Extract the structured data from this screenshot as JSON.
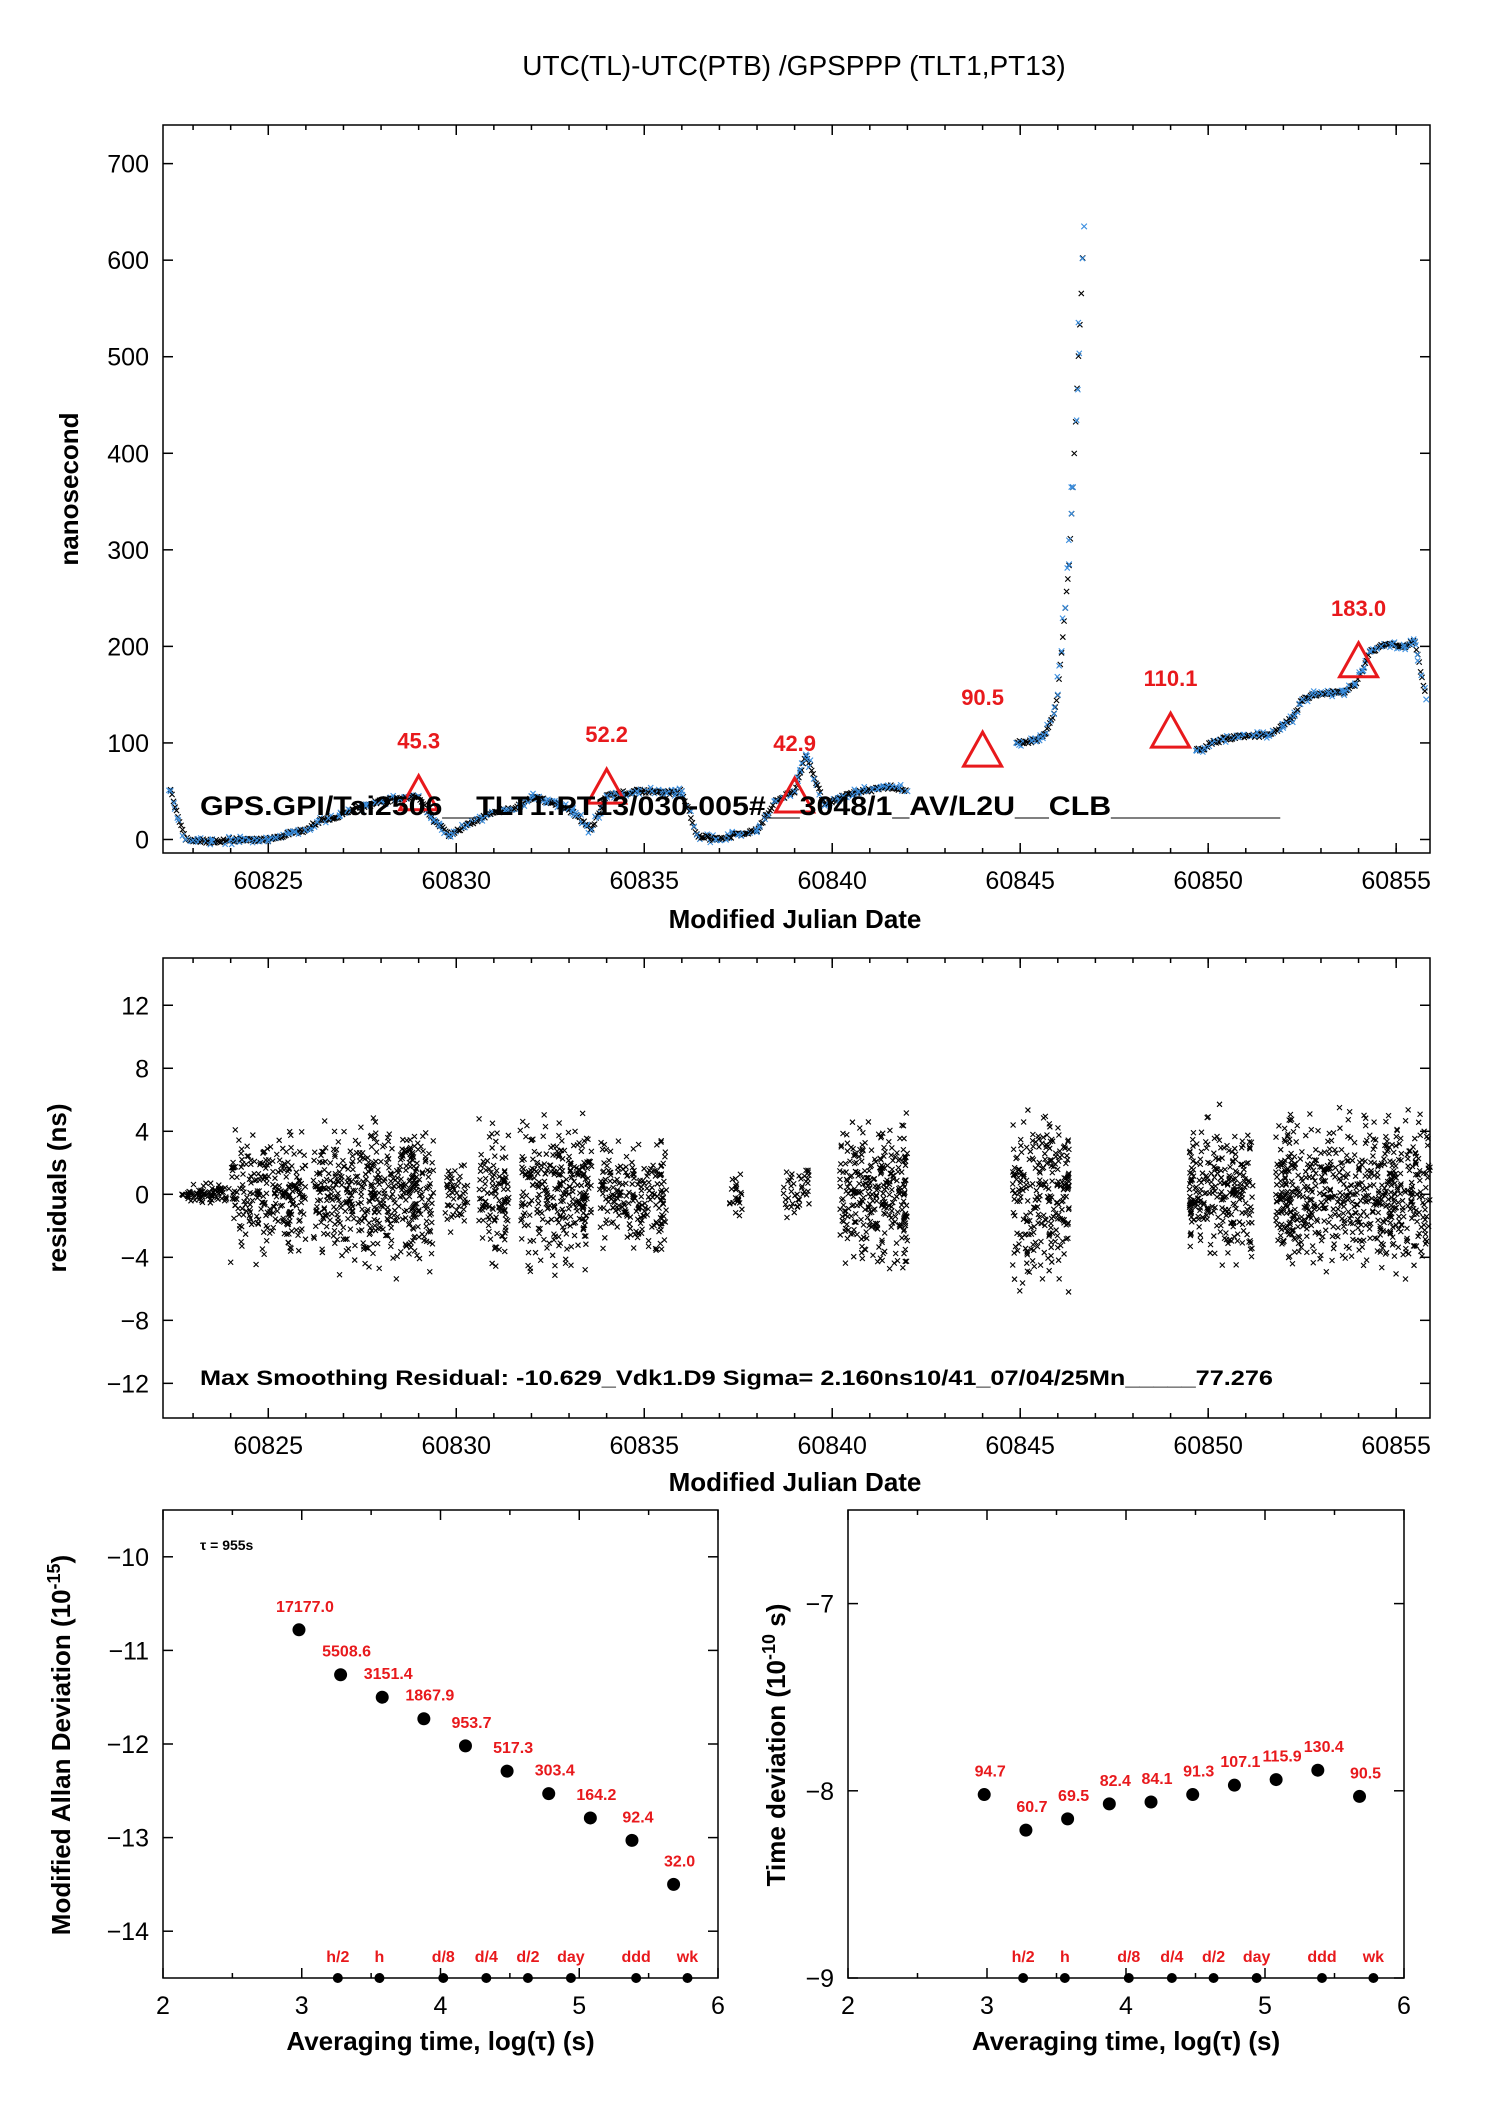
{
  "title": "UTC(TL)-UTC(PTB)  /GPSPPP  (TLT1,PT13)",
  "colors": {
    "accent": "#e8191c",
    "data_blue": "#3b8fe0",
    "data_black": "#000000"
  },
  "chart_data": [
    {
      "id": "time_series",
      "type": "scatter",
      "title": "UTC(TL)-UTC(PTB)  /GPSPPP  (TLT1,PT13)",
      "xlabel": "Modified Julian Date",
      "ylabel": "nanosecond",
      "xlim": [
        60822.2,
        60855.9
      ],
      "ylim": [
        -14,
        740
      ],
      "xticks": [
        60825,
        60830,
        60835,
        60840,
        60845,
        60850,
        60855
      ],
      "yticks": [
        0,
        100,
        200,
        300,
        400,
        500,
        600,
        700
      ],
      "info_text": "GPS.GPI/Tai2506__TLT1:PT13/030-005#__3048/1_AV/L2U__CLB__________",
      "series_points": [
        [
          60822.4,
          50
        ],
        [
          60822.8,
          0
        ],
        [
          60823.0,
          -1
        ],
        [
          60823.5,
          -2
        ],
        [
          60824.0,
          0
        ],
        [
          60824.3,
          -1
        ],
        [
          60825.0,
          0
        ],
        [
          60825.2,
          2
        ],
        [
          60825.7,
          8
        ],
        [
          60826.0,
          10
        ],
        [
          60826.3,
          18
        ],
        [
          60826.6,
          22
        ],
        [
          60826.9,
          25
        ],
        [
          60827.2,
          30
        ],
        [
          60827.6,
          35
        ],
        [
          60828.0,
          40
        ],
        [
          60828.5,
          42
        ],
        [
          60829.0,
          45
        ],
        [
          60829.4,
          20
        ],
        [
          60829.8,
          5
        ],
        [
          60830.3,
          15
        ],
        [
          60830.8,
          25
        ],
        [
          60831.3,
          30
        ],
        [
          60831.7,
          35
        ],
        [
          60832.0,
          45
        ],
        [
          60832.4,
          40
        ],
        [
          60832.8,
          35
        ],
        [
          60833.2,
          25
        ],
        [
          60833.6,
          10
        ],
        [
          60834.0,
          45
        ],
        [
          60834.4,
          48
        ],
        [
          60834.8,
          50
        ],
        [
          60835.2,
          50
        ],
        [
          60835.6,
          48
        ],
        [
          60836.0,
          50
        ],
        [
          60836.4,
          5
        ],
        [
          60836.9,
          0
        ],
        [
          60837.5,
          5
        ],
        [
          60838.0,
          10
        ],
        [
          60838.5,
          40
        ],
        [
          60839.0,
          50
        ],
        [
          60839.3,
          88
        ],
        [
          60839.8,
          35
        ],
        [
          60840.3,
          45
        ],
        [
          60840.7,
          50
        ],
        [
          60841.2,
          52
        ],
        [
          60841.6,
          55
        ],
        [
          60842.0,
          50
        ],
        [
          60844.9,
          100
        ],
        [
          60845.3,
          102
        ],
        [
          60845.6,
          105
        ],
        [
          60845.9,
          130
        ],
        [
          60846.0,
          150
        ],
        [
          60846.1,
          195
        ],
        [
          60846.2,
          240
        ],
        [
          60846.3,
          285
        ],
        [
          60846.4,
          365
        ],
        [
          60846.7,
          635
        ],
        [
          60849.7,
          92
        ],
        [
          60849.9,
          95
        ],
        [
          60850.1,
          100
        ],
        [
          60850.4,
          104
        ],
        [
          60850.8,
          106
        ],
        [
          60851.2,
          108
        ],
        [
          60851.6,
          108
        ],
        [
          60852.0,
          118
        ],
        [
          60852.3,
          128
        ],
        [
          60852.5,
          145
        ],
        [
          60852.8,
          150
        ],
        [
          60853.2,
          152
        ],
        [
          60853.6,
          152
        ],
        [
          60853.9,
          160
        ],
        [
          60854.1,
          175
        ],
        [
          60854.3,
          195
        ],
        [
          60854.6,
          200
        ],
        [
          60854.9,
          203
        ],
        [
          60855.2,
          200
        ],
        [
          60855.5,
          205
        ],
        [
          60855.8,
          145
        ]
      ],
      "markers": [
        {
          "x": 60829.0,
          "y": 45.3,
          "label": "45.3"
        },
        {
          "x": 60834.0,
          "y": 52.2,
          "label": "52.2"
        },
        {
          "x": 60839.0,
          "y": 42.9,
          "label": "42.9"
        },
        {
          "x": 60844.0,
          "y": 90.5,
          "label": "90.5"
        },
        {
          "x": 60849.0,
          "y": 110.1,
          "label": "110.1"
        },
        {
          "x": 60854.0,
          "y": 183.0,
          "label": "183.0"
        }
      ]
    },
    {
      "id": "residuals",
      "type": "scatter",
      "xlabel": "Modified Julian Date",
      "ylabel": "residuals (ns)",
      "xlim": [
        60822.2,
        60855.9
      ],
      "ylim": [
        -14.2,
        15
      ],
      "xticks": [
        60825,
        60830,
        60835,
        60840,
        60845,
        60850,
        60855
      ],
      "yticks": [
        12,
        8,
        4,
        0,
        -4,
        -8,
        -12
      ],
      "ytick_labels": [
        "12",
        "8",
        "4",
        "0",
        "−4",
        "−8",
        "−12"
      ],
      "info_text": "Max Smoothing Residual: -10.629_Vdk1.D9  Sigma= 2.160ns10/41_07/04/25Mn_____77.276",
      "clusters": [
        {
          "x0": 60822.7,
          "x1": 60824.0,
          "spread": 0.6
        },
        {
          "x0": 60824.0,
          "x1": 60826.0,
          "spread": 3.2
        },
        {
          "x0": 60826.2,
          "x1": 60829.4,
          "spread": 3.8
        },
        {
          "x0": 60829.7,
          "x1": 60830.3,
          "spread": 2.0
        },
        {
          "x0": 60830.6,
          "x1": 60831.4,
          "spread": 3.5
        },
        {
          "x0": 60831.7,
          "x1": 60833.6,
          "spread": 3.8
        },
        {
          "x0": 60833.8,
          "x1": 60835.6,
          "spread": 3.0
        },
        {
          "x0": 60837.2,
          "x1": 60837.6,
          "spread": 1.0
        },
        {
          "x0": 60838.7,
          "x1": 60839.4,
          "spread": 1.5
        },
        {
          "x0": 60840.2,
          "x1": 60842.0,
          "spread": 4.2
        },
        {
          "x0": 60844.8,
          "x1": 60846.3,
          "spread": 4.2
        },
        {
          "x0": 60849.5,
          "x1": 60851.2,
          "spread": 3.8
        },
        {
          "x0": 60851.8,
          "x1": 60855.9,
          "spread": 4.0
        }
      ]
    },
    {
      "id": "modified_allan_deviation",
      "type": "scatter",
      "xlabel": "Averaging time, log(τ) (s)",
      "ylabel": "Modified Allan Deviation (10",
      "ylabel_sup": "-15",
      "ylabel_tail": ")",
      "xlim": [
        2,
        6
      ],
      "ylim": [
        -14.5,
        -9.5
      ],
      "xticks": [
        2,
        3,
        4,
        5,
        6
      ],
      "yticks": [
        -10,
        -11,
        -12,
        -13,
        -14
      ],
      "ytick_labels": [
        "−10",
        "−11",
        "−12",
        "−13",
        "−14"
      ],
      "tau_note": "τ = 955s",
      "points": [
        {
          "x": 2.98,
          "y": -10.78,
          "label": "17177.0"
        },
        {
          "x": 3.28,
          "y": -11.26,
          "label": "5508.6"
        },
        {
          "x": 3.58,
          "y": -11.5,
          "label": "3151.4"
        },
        {
          "x": 3.88,
          "y": -11.73,
          "label": "1867.9"
        },
        {
          "x": 4.18,
          "y": -12.02,
          "label": "953.7"
        },
        {
          "x": 4.48,
          "y": -12.29,
          "label": "517.3"
        },
        {
          "x": 4.78,
          "y": -12.53,
          "label": "303.4"
        },
        {
          "x": 5.08,
          "y": -12.79,
          "label": "164.2"
        },
        {
          "x": 5.38,
          "y": -13.03,
          "label": "92.4"
        },
        {
          "x": 5.68,
          "y": -13.5,
          "label": "32.0"
        }
      ],
      "time_marks": [
        {
          "x": 3.26,
          "label": "h/2"
        },
        {
          "x": 3.56,
          "label": "h"
        },
        {
          "x": 4.02,
          "label": "d/8"
        },
        {
          "x": 4.33,
          "label": "d/4"
        },
        {
          "x": 4.63,
          "label": "d/2"
        },
        {
          "x": 4.94,
          "label": "day"
        },
        {
          "x": 5.41,
          "label": "ddd"
        },
        {
          "x": 5.78,
          "label": "wk"
        }
      ]
    },
    {
      "id": "time_deviation",
      "type": "scatter",
      "xlabel": "Averaging time, log(τ) (s)",
      "ylabel": "Time deviation (10",
      "ylabel_sup": "-10",
      "ylabel_tail": " s)",
      "xlim": [
        2,
        6
      ],
      "ylim": [
        -9,
        -6.5
      ],
      "xticks": [
        2,
        3,
        4,
        5,
        6
      ],
      "yticks": [
        -7,
        -8,
        -9
      ],
      "ytick_labels": [
        "−7",
        "−8",
        "−9"
      ],
      "points": [
        {
          "x": 2.98,
          "y": -8.02,
          "label": "94.7"
        },
        {
          "x": 3.28,
          "y": -8.21,
          "label": "60.7"
        },
        {
          "x": 3.58,
          "y": -8.15,
          "label": "69.5"
        },
        {
          "x": 3.88,
          "y": -8.07,
          "label": "82.4"
        },
        {
          "x": 4.18,
          "y": -8.06,
          "label": "84.1"
        },
        {
          "x": 4.48,
          "y": -8.02,
          "label": "91.3"
        },
        {
          "x": 4.78,
          "y": -7.97,
          "label": "107.1"
        },
        {
          "x": 5.08,
          "y": -7.94,
          "label": "115.9"
        },
        {
          "x": 5.38,
          "y": -7.89,
          "label": "130.4"
        },
        {
          "x": 5.68,
          "y": -8.03,
          "label": "90.5"
        }
      ],
      "time_marks": [
        {
          "x": 3.26,
          "label": "h/2"
        },
        {
          "x": 3.56,
          "label": "h"
        },
        {
          "x": 4.02,
          "label": "d/8"
        },
        {
          "x": 4.33,
          "label": "d/4"
        },
        {
          "x": 4.63,
          "label": "d/2"
        },
        {
          "x": 4.94,
          "label": "day"
        },
        {
          "x": 5.41,
          "label": "ddd"
        },
        {
          "x": 5.78,
          "label": "wk"
        }
      ]
    }
  ]
}
